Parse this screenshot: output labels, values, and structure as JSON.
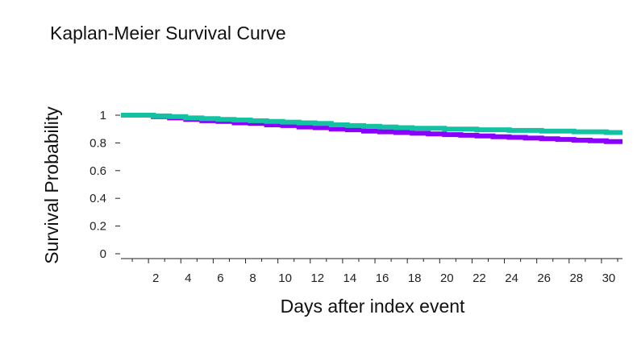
{
  "chart_data": {
    "type": "line",
    "title": "Kaplan-Meier Survival Curve",
    "xlabel": "Days after index event",
    "ylabel": "Survival Probability",
    "xlim": [
      0,
      31
    ],
    "ylim": [
      0,
      1
    ],
    "x_ticks": [
      2,
      4,
      6,
      8,
      10,
      12,
      14,
      16,
      18,
      20,
      22,
      24,
      26,
      28,
      30
    ],
    "y_ticks": [
      0,
      0.2,
      0.4,
      0.6,
      0.8,
      1
    ],
    "y_tick_labels": [
      "0",
      "0.2",
      "0.4",
      "0.6",
      "0.8",
      "1"
    ],
    "grid": false,
    "x": [
      0,
      1,
      2,
      3,
      4,
      5,
      6,
      7,
      8,
      9,
      10,
      11,
      12,
      13,
      14,
      15,
      16,
      17,
      18,
      19,
      20,
      21,
      22,
      23,
      24,
      25,
      26,
      27,
      28,
      29,
      30,
      31
    ],
    "series": [
      {
        "color": "#8a00ff",
        "values": [
          1.0,
          1.0,
          0.99,
          0.98,
          0.97,
          0.96,
          0.955,
          0.945,
          0.94,
          0.93,
          0.925,
          0.915,
          0.91,
          0.9,
          0.895,
          0.885,
          0.88,
          0.875,
          0.87,
          0.865,
          0.86,
          0.855,
          0.85,
          0.845,
          0.84,
          0.835,
          0.83,
          0.825,
          0.82,
          0.815,
          0.81,
          0.81
        ]
      },
      {
        "color": "#13c2a3",
        "values": [
          1.0,
          1.0,
          0.995,
          0.99,
          0.98,
          0.975,
          0.97,
          0.965,
          0.96,
          0.955,
          0.95,
          0.945,
          0.94,
          0.93,
          0.925,
          0.92,
          0.915,
          0.91,
          0.905,
          0.905,
          0.9,
          0.9,
          0.895,
          0.895,
          0.89,
          0.89,
          0.885,
          0.885,
          0.88,
          0.88,
          0.875,
          0.875
        ]
      }
    ]
  }
}
